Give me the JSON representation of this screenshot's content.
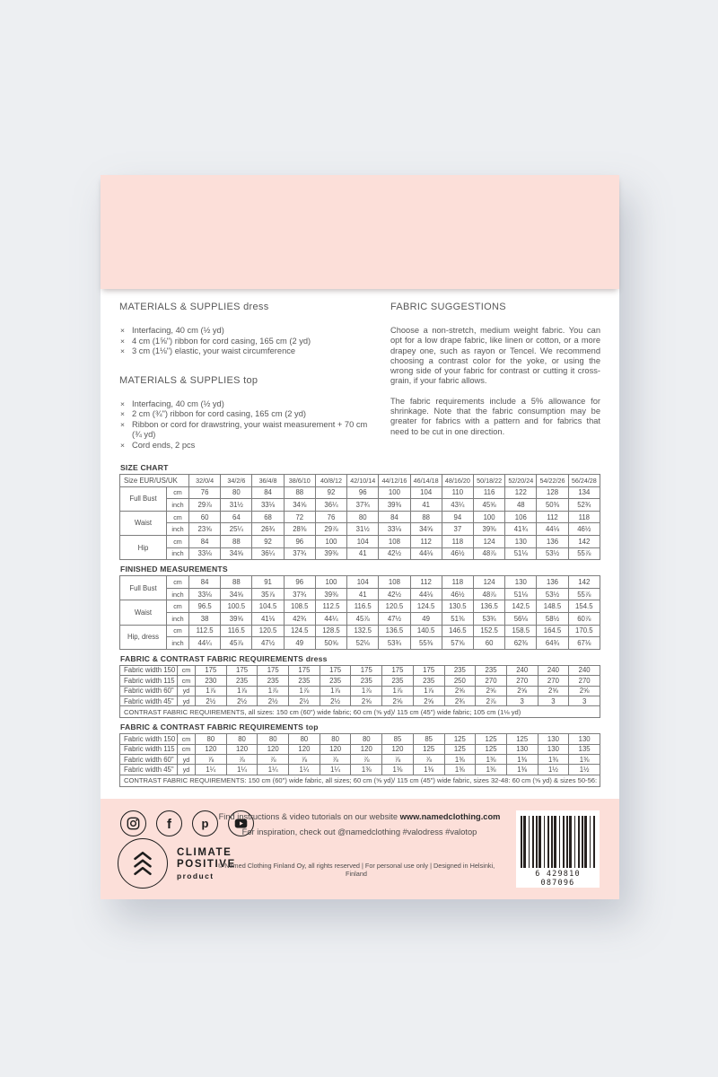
{
  "materials_dress": {
    "title": "MATERIALS & SUPPLIES dress",
    "items": [
      "Interfacing, 40 cm (½ yd)",
      "4 cm (1⅝\") ribbon for cord casing, 165 cm (2 yd)",
      "3 cm (1⅛\") elastic, your waist circumference"
    ]
  },
  "materials_top": {
    "title": "MATERIALS & SUPPLIES top",
    "items": [
      "Interfacing, 40 cm (½ yd)",
      "2 cm (¾\") ribbon for cord casing, 165 cm (2 yd)",
      "Ribbon or cord for drawstring, your waist measurement + 70 cm (¾ yd)",
      "Cord ends, 2 pcs"
    ]
  },
  "fabric_suggestions": {
    "title": "FABRIC SUGGESTIONS",
    "paragraphs": [
      "Choose a non-stretch, medium weight fabric. You can opt for a low drape fabric, like linen or cotton, or a more drapey one, such as rayon or Tencel. We recommend choosing a contrast color for the yoke, or using the wrong side of your fabric for contrast or cutting it cross-grain, if your fabric allows.",
      "The fabric requirements include a 5% allowance for shrinkage. Note that the fabric consumption may be greater for fabrics with a pattern and for fabrics that need to be cut in one direction."
    ]
  },
  "size_chart": {
    "title": "SIZE CHART",
    "header_label": "Size EUR/US/UK",
    "sizes": [
      "32/0/4",
      "34/2/6",
      "36/4/8",
      "38/6/10",
      "40/8/12",
      "42/10/14",
      "44/12/16",
      "46/14/18",
      "48/16/20",
      "50/18/22",
      "52/20/24",
      "54/22/26",
      "56/24/28"
    ],
    "groups": [
      {
        "label": "Full Bust",
        "rows": [
          {
            "unit": "cm",
            "values": [
              "76",
              "80",
              "84",
              "88",
              "92",
              "96",
              "100",
              "104",
              "110",
              "116",
              "122",
              "128",
              "134"
            ]
          },
          {
            "unit": "inch",
            "values": [
              "29⅞",
              "31½",
              "33⅛",
              "34⅝",
              "36¼",
              "37¾",
              "39⅜",
              "41",
              "43¼",
              "45⅝",
              "48",
              "50⅜",
              "52¾"
            ]
          }
        ]
      },
      {
        "label": "Waist",
        "rows": [
          {
            "unit": "cm",
            "values": [
              "60",
              "64",
              "68",
              "72",
              "76",
              "80",
              "84",
              "88",
              "94",
              "100",
              "106",
              "112",
              "118"
            ]
          },
          {
            "unit": "inch",
            "values": [
              "23⅝",
              "25¼",
              "26¾",
              "28⅜",
              "29⅞",
              "31½",
              "33⅛",
              "34⅝",
              "37",
              "39⅜",
              "41¾",
              "44⅛",
              "46½"
            ]
          }
        ]
      },
      {
        "label": "Hip",
        "rows": [
          {
            "unit": "cm",
            "values": [
              "84",
              "88",
              "92",
              "96",
              "100",
              "104",
              "108",
              "112",
              "118",
              "124",
              "130",
              "136",
              "142"
            ]
          },
          {
            "unit": "inch",
            "values": [
              "33⅛",
              "34⅝",
              "36¼",
              "37¾",
              "39⅜",
              "41",
              "42½",
              "44⅛",
              "46½",
              "48⅞",
              "51⅛",
              "53½",
              "55⅞"
            ]
          }
        ]
      }
    ]
  },
  "finished_measurements": {
    "title": "FINISHED MEASUREMENTS",
    "groups": [
      {
        "label": "Full Bust",
        "rows": [
          {
            "unit": "cm",
            "values": [
              "84",
              "88",
              "91",
              "96",
              "100",
              "104",
              "108",
              "112",
              "118",
              "124",
              "130",
              "136",
              "142"
            ]
          },
          {
            "unit": "inch",
            "values": [
              "33⅛",
              "34⅝",
              "35⅞",
              "37¾",
              "39⅜",
              "41",
              "42½",
              "44⅛",
              "46½",
              "48⅞",
              "51⅛",
              "53½",
              "55⅞"
            ]
          }
        ]
      },
      {
        "label": "Waist",
        "rows": [
          {
            "unit": "cm",
            "values": [
              "96.5",
              "100.5",
              "104.5",
              "108.5",
              "112.5",
              "116.5",
              "120.5",
              "124.5",
              "130.5",
              "136.5",
              "142.5",
              "148.5",
              "154.5"
            ]
          },
          {
            "unit": "inch",
            "values": [
              "38",
              "39⅝",
              "41⅛",
              "42¾",
              "44¼",
              "45⅞",
              "47½",
              "49",
              "51⅜",
              "53¾",
              "56⅛",
              "58½",
              "60⅞"
            ]
          }
        ]
      },
      {
        "label": "Hip, dress",
        "rows": [
          {
            "unit": "cm",
            "values": [
              "112.5",
              "116.5",
              "120.5",
              "124.5",
              "128.5",
              "132.5",
              "136.5",
              "140.5",
              "146.5",
              "152.5",
              "158.5",
              "164.5",
              "170.5"
            ]
          },
          {
            "unit": "inch",
            "values": [
              "44¼",
              "45⅞",
              "47½",
              "49",
              "50⅝",
              "52⅛",
              "53¾",
              "55⅜",
              "57⅝",
              "60",
              "62⅜",
              "64¾",
              "67⅛"
            ]
          }
        ]
      }
    ]
  },
  "fabric_req_dress": {
    "title": "FABRIC & CONTRAST FABRIC REQUIREMENTS dress",
    "rows": [
      {
        "label": "Fabric width 150",
        "unit": "cm",
        "values": [
          "175",
          "175",
          "175",
          "175",
          "175",
          "175",
          "175",
          "175",
          "235",
          "235",
          "240",
          "240",
          "240"
        ]
      },
      {
        "label": "Fabric width 115",
        "unit": "cm",
        "values": [
          "230",
          "235",
          "235",
          "235",
          "235",
          "235",
          "235",
          "235",
          "250",
          "270",
          "270",
          "270",
          "270"
        ]
      },
      {
        "label": "Fabric width 60\"",
        "unit": "yd",
        "values": [
          "1⅞",
          "1⅞",
          "1⅞",
          "1⅞",
          "1⅞",
          "1⅞",
          "1⅞",
          "1⅞",
          "2⅝",
          "2⅝",
          "2⅝",
          "2⅝",
          "2⅝"
        ]
      },
      {
        "label": "Fabric width 45\"",
        "unit": "yd",
        "values": [
          "2½",
          "2½",
          "2½",
          "2½",
          "2½",
          "2⅝",
          "2⅝",
          "2⅝",
          "2¾",
          "2⅞",
          "3",
          "3",
          "3"
        ]
      }
    ],
    "note": "CONTRAST FABRIC REQUIREMENTS, all sizes: 150 cm (60\") wide fabric; 60 cm (⅝ yd)/ 115 cm (45\") wide fabric; 105 cm (1⅛ yd)"
  },
  "fabric_req_top": {
    "title": "FABRIC & CONTRAST FABRIC REQUIREMENTS top",
    "rows": [
      {
        "label": "Fabric width 150",
        "unit": "cm",
        "values": [
          "80",
          "80",
          "80",
          "80",
          "80",
          "80",
          "85",
          "85",
          "125",
          "125",
          "125",
          "130",
          "130"
        ]
      },
      {
        "label": "Fabric width 115",
        "unit": "cm",
        "values": [
          "120",
          "120",
          "120",
          "120",
          "120",
          "120",
          "120",
          "125",
          "125",
          "125",
          "130",
          "130",
          "135"
        ]
      },
      {
        "label": "Fabric width 60\"",
        "unit": "yd",
        "values": [
          "⅞",
          "⅞",
          "⅞",
          "⅞",
          "⅞",
          "⅞",
          "⅞",
          "⅞",
          "1⅜",
          "1⅜",
          "1⅜",
          "1⅜",
          "1⅜"
        ]
      },
      {
        "label": "Fabric width 45\"",
        "unit": "yd",
        "values": [
          "1¼",
          "1¼",
          "1¼",
          "1¼",
          "1¼",
          "1⅜",
          "1⅜",
          "1⅜",
          "1⅜",
          "1⅜",
          "1⅜",
          "1½",
          "1½"
        ]
      }
    ],
    "note": "CONTRAST FABRIC REQUIREMENTS: 150 cm (60\") wide fabric, all sizes; 60 cm (⅝ yd)/ 115 cm (45\") wide fabric, sizes 32-48: 60 cm (⅝ yd) & sizes 50-56: 105 cm (1⅛ yd)"
  },
  "footer": {
    "line1_prefix": "Find instructions & video tutorials on our website ",
    "line1_site": "www.namedclothing.com",
    "line2": "For inspiration, check out @namedclothing #valodress #valotop",
    "climate": {
      "line1": "CLIMATE",
      "line2": "POSITIVE",
      "line3": "product"
    },
    "copyright": "© Named Clothing Finland Oy, all rights reserved | For personal use only | Designed in Helsinki, Finland",
    "barcode_digits": "6 429810 087096",
    "social_icons": [
      "instagram-icon",
      "facebook-icon",
      "pinterest-icon",
      "youtube-icon"
    ]
  },
  "colors": {
    "pink": "#fcdfd9",
    "background": "#edeff2",
    "sheet": "#ffffff",
    "text": "#4f4f4f",
    "table_border": "#7d7d7d",
    "ink": "#1d1d1d"
  }
}
